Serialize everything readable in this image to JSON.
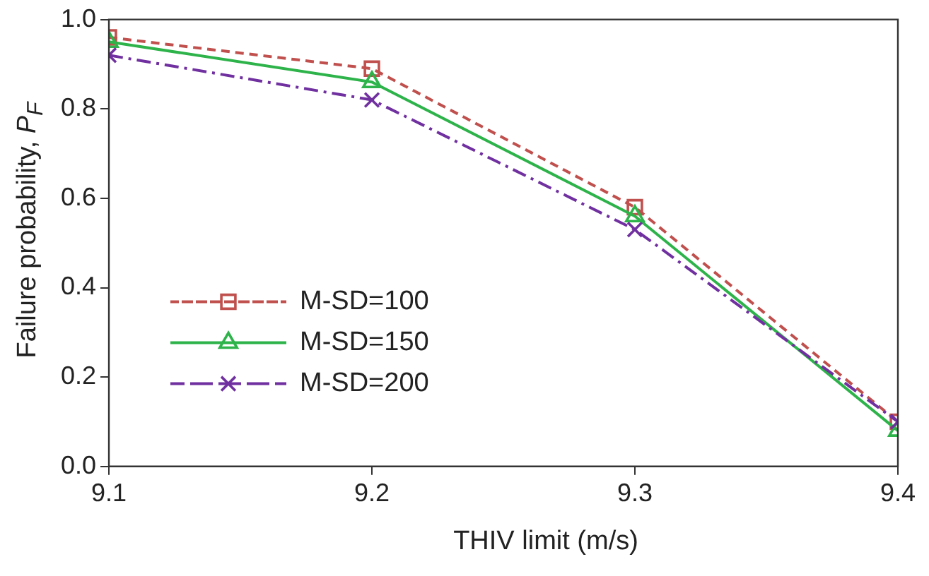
{
  "chart_data": {
    "type": "line",
    "xlabel": "THIV limit (m/s)",
    "ylabel": "Failure probability, $_{}$P$_{F}$",
    "x": [
      9.1,
      9.2,
      9.3,
      9.4
    ],
    "xlim": [
      9.1,
      9.4
    ],
    "xticks": [
      9.1,
      9.2,
      9.3,
      9.4
    ],
    "ylim": [
      0,
      1
    ],
    "yticks": [
      {
        "value": 0,
        "label": "0.0"
      },
      0.2,
      0.4,
      0.6,
      0.8,
      {
        "value": 1,
        "label": "1.0"
      }
    ],
    "grid": false,
    "legend": "left",
    "series": [
      {
        "name": "M-SD=100",
        "color": "#c0504d",
        "marker": "square",
        "line_style": "dashed",
        "values": [
          0.96,
          0.89,
          0.58,
          0.1
        ]
      },
      {
        "name": "M-SD=150",
        "color": "#2db34a",
        "marker": "triangle",
        "line_style": "solid",
        "values": [
          0.95,
          0.86,
          0.56,
          0.08
        ]
      },
      {
        "name": "M-SD=200",
        "color": "#7030a0",
        "marker": "cross",
        "line_style": "dashdot",
        "values": [
          0.92,
          0.82,
          0.53,
          0.1
        ]
      }
    ]
  }
}
